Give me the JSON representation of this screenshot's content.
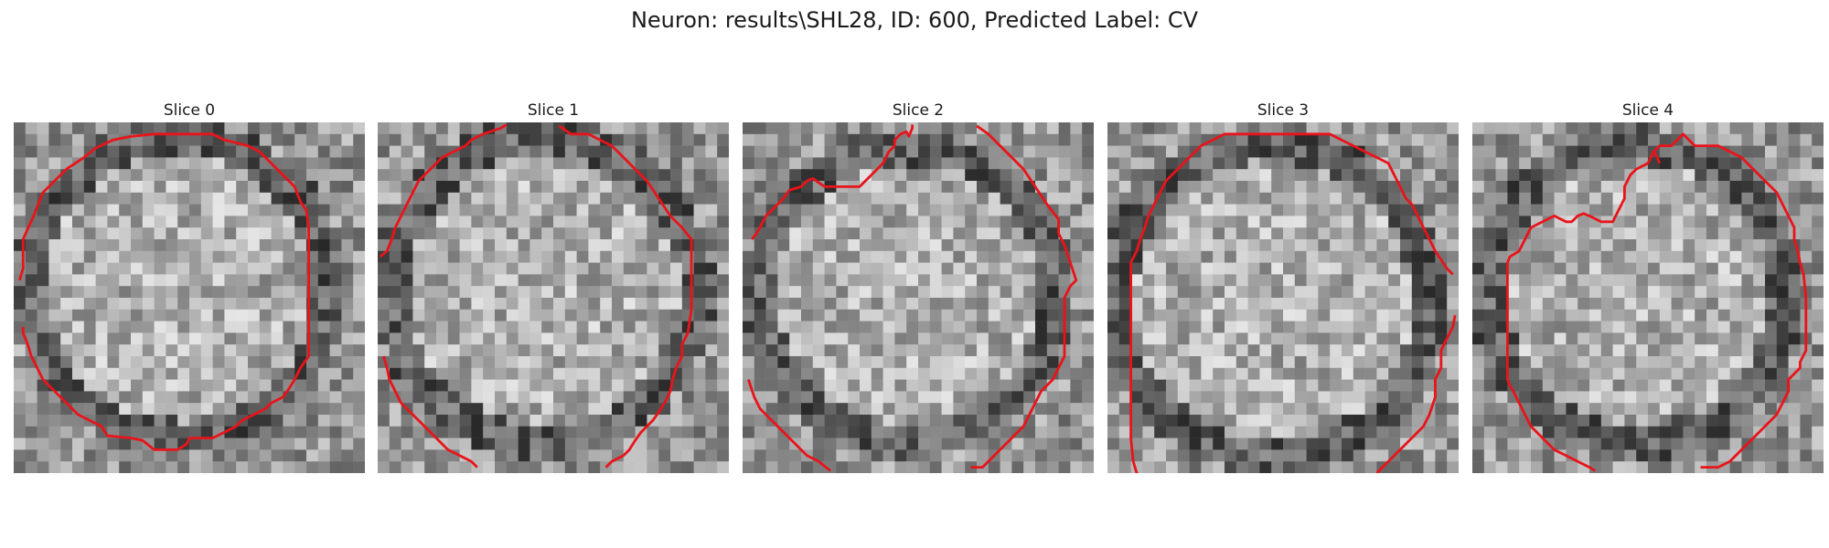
{
  "figure": {
    "title": "Neuron: results\\SHL28, ID: 600, Predicted Label: CV"
  },
  "panels": [
    {
      "title": "Slice 0",
      "seed": 11
    },
    {
      "title": "Slice 1",
      "seed": 23
    },
    {
      "title": "Slice 2",
      "seed": 37
    },
    {
      "title": "Slice 3",
      "seed": 41
    },
    {
      "title": "Slice 4",
      "seed": 59
    }
  ],
  "colors": {
    "contour": "#e8141a",
    "background": "#ffffff"
  }
}
